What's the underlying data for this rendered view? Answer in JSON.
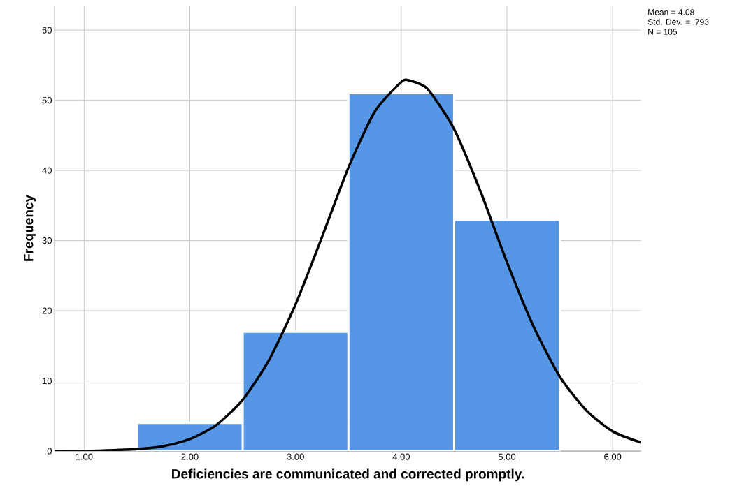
{
  "chart_data": {
    "type": "histogram",
    "xlabel": "Deficiencies are communicated and corrected promptly.",
    "ylabel": "Frequency",
    "annotations": [
      "Mean = 4.08",
      "Std. Dev. = .793",
      "N = 105"
    ],
    "series": [
      {
        "color": "#5596e6",
        "bins": [
          1.5,
          2.5,
          3.5,
          4.5,
          5.5
        ],
        "values": [
          4,
          17,
          51,
          33
        ]
      },
      {
        "type": "line",
        "color": "#000000",
        "x": [
          0.72,
          1.0,
          1.5,
          1.75,
          2.0,
          2.25,
          2.5,
          2.75,
          3.0,
          3.25,
          3.5,
          3.75,
          4.0,
          4.08,
          4.25,
          4.5,
          4.75,
          5.0,
          5.25,
          5.5,
          5.75,
          6.0,
          6.27
        ],
        "values": [
          0.0,
          0.0,
          0.3,
          0.7,
          1.7,
          3.7,
          7.3,
          13.0,
          20.9,
          30.5,
          40.4,
          48.4,
          52.6,
          52.8,
          51.6,
          45.9,
          37.0,
          26.9,
          17.8,
          10.6,
          5.8,
          2.8,
          1.2
        ]
      }
    ],
    "xlim": [
      0.72,
      6.27
    ],
    "ylim": [
      0,
      63.5
    ],
    "xticks": [
      {
        "value": 1,
        "label": "1.00"
      },
      {
        "value": 2,
        "label": "2.00"
      },
      {
        "value": 3,
        "label": "3.00"
      },
      {
        "value": 4,
        "label": "4.00"
      },
      {
        "value": 5,
        "label": "5.00"
      },
      {
        "value": 6,
        "label": "6.00"
      }
    ],
    "yticks": [
      0,
      10,
      20,
      30,
      40,
      50,
      60
    ],
    "grid": true,
    "line_style": "solid",
    "marker": "none"
  }
}
